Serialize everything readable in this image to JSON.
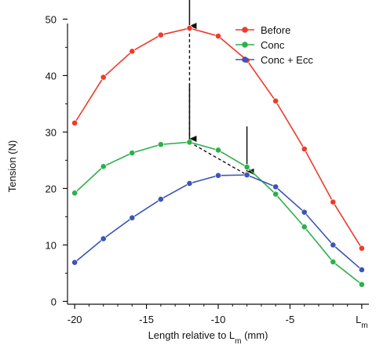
{
  "chart_data": {
    "type": "line",
    "xlabel_main": "Length relative to L",
    "xlabel_sub": "m",
    "xlabel_suffix": " (mm)",
    "ylabel": "Tension (N)",
    "xlim": [
      -20.5,
      0.5
    ],
    "ylim": [
      -0.5,
      52
    ],
    "x_ticks": [
      -20,
      -15,
      -10,
      -5,
      0
    ],
    "x_tick_labels": [
      "-20",
      "-15",
      "-10",
      "-5",
      "L"
    ],
    "x_tick_label_subs": [
      "",
      "",
      "",
      "",
      "m"
    ],
    "y_ticks": [
      0,
      10,
      20,
      30,
      40,
      50
    ],
    "y_tick_labels": [
      "0",
      "10",
      "20",
      "30",
      "40",
      "50"
    ],
    "x": [
      -20,
      -18,
      -16,
      -14,
      -12,
      -10,
      -8,
      -6,
      -4,
      -2,
      0
    ],
    "series": [
      {
        "name": "Before",
        "color": "#ee3b2b",
        "values": [
          31.6,
          39.7,
          44.3,
          47.2,
          48.4,
          47.0,
          42.7,
          35.5,
          27.0,
          17.6,
          9.4
        ]
      },
      {
        "name": "Conc",
        "color": "#2bb04a",
        "values": [
          19.2,
          23.9,
          26.3,
          27.8,
          28.2,
          26.8,
          23.8,
          19.0,
          13.2,
          7.0,
          3.0
        ]
      },
      {
        "name": "Conc + Ecc",
        "color": "#3d55b5",
        "values": [
          6.9,
          11.1,
          14.8,
          18.1,
          20.9,
          22.3,
          22.4,
          20.3,
          15.8,
          10.0,
          5.6
        ]
      }
    ],
    "annotations": {
      "dashed_lines": [
        {
          "from": [
            -12,
            48.4
          ],
          "to": [
            -12,
            28.2
          ]
        },
        {
          "from": [
            -12,
            28.2
          ],
          "to": [
            -8,
            22.4
          ]
        }
      ],
      "arrows": [
        {
          "x": -12,
          "from_y": 54,
          "to_y": 48.8
        },
        {
          "x": -12,
          "from_y": 38.5,
          "to_y": 28.8
        },
        {
          "x": -8,
          "from_y": 31,
          "to_y": 23.0
        }
      ]
    },
    "grid": false,
    "legend_position": "top-right"
  }
}
